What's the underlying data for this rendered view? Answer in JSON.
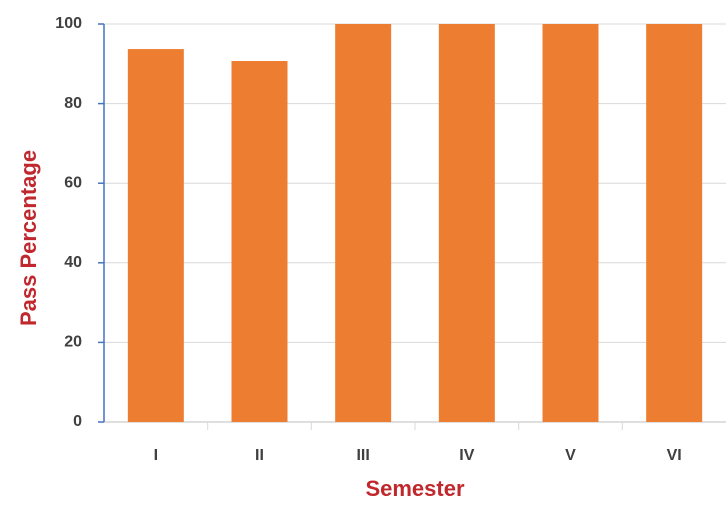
{
  "chart_data": {
    "type": "bar",
    "categories": [
      "I",
      "II",
      "III",
      "IV",
      "V",
      "VI"
    ],
    "values": [
      93.7,
      90.7,
      100,
      100,
      100,
      100
    ],
    "color": "#ed7d31",
    "x_label": "Semester",
    "y_label": "Pass Percentage",
    "ylim": [
      0,
      100
    ],
    "yticks": [
      0,
      20,
      40,
      60,
      80,
      100
    ],
    "grid": true
  }
}
